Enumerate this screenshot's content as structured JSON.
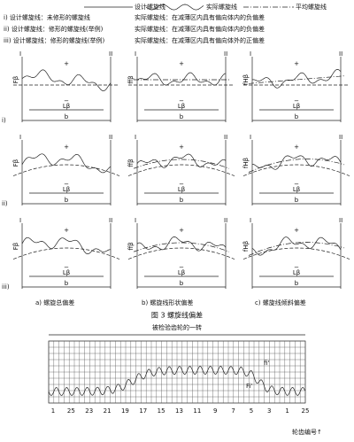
{
  "header": {
    "legend": [
      "设计螺旋线",
      "实际螺旋线",
      "平均螺旋线"
    ],
    "rows": [
      {
        "design": "i) 设计螺旋线：未修形的螺旋线",
        "actual": "实际螺旋线：在减薄区内具有偏向体内的负偏差"
      },
      {
        "design": "ii) 设计螺旋线：修形的螺旋线(举例)",
        "actual": "实际螺旋线：在减薄区内具有偏向体内的负偏差"
      },
      {
        "design": "iii) 设计螺旋线：修形的螺旋线(举例)",
        "actual": "实际螺旋线：在减薄区内具有偏向体外的正偏差"
      }
    ]
  },
  "row_labels": [
    "i)",
    "ii)",
    "iii)"
  ],
  "panel_texts": {
    "left": "I",
    "right": "II",
    "plus": "+",
    "minus": "−",
    "length": "Lβ",
    "width": "b"
  },
  "column_symbols": [
    "Fβ",
    "ffβ",
    "fHβ"
  ],
  "captions": [
    "a) 螺旋总偏差",
    "b) 螺旋线形状偏差",
    "c) 螺旋线倾斜偏差"
  ],
  "figure_title": "图 3   螺旋线偏差",
  "bottom_chart": {
    "title": "被检验齿轮的一转",
    "x_labels": [
      "1",
      "25",
      "23",
      "21",
      "19",
      "17",
      "15",
      "13",
      "11",
      "9",
      "7",
      "5",
      "3",
      "1",
      "25"
    ],
    "x_axis_label": "轮齿编号↑",
    "tooth_label": "fi'",
    "total_label": "Fi'"
  }
}
